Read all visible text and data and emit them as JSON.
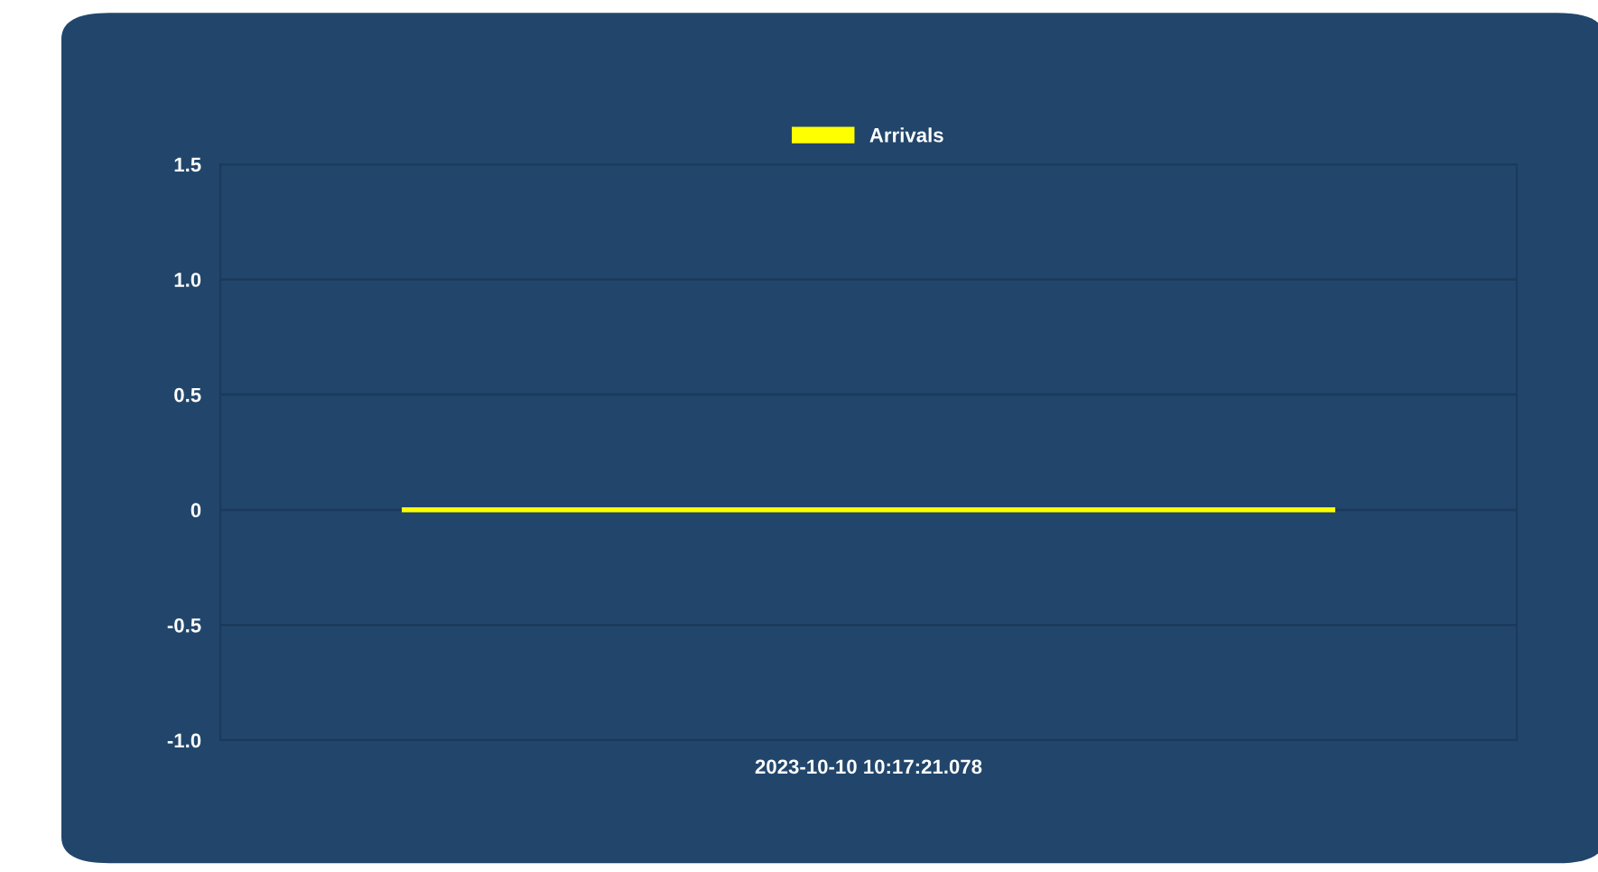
{
  "chart_data": {
    "type": "bar",
    "categories": [
      "2023-10-10 10:17:21.078"
    ],
    "series": [
      {
        "name": "Arrivals",
        "color": "#ffff00",
        "values": [
          0
        ]
      }
    ],
    "ylim": [
      -1.0,
      1.5
    ],
    "yticks": [
      {
        "value": -1,
        "label": "-1.0"
      },
      -0.5,
      0,
      0.5,
      {
        "value": 1,
        "label": "1.0"
      },
      1.5
    ],
    "grid": "y",
    "legend": "top"
  }
}
